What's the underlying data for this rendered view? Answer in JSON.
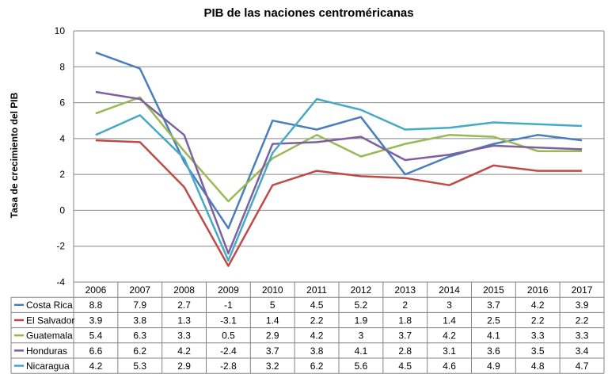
{
  "chart_data": {
    "type": "line",
    "title": "PIB de las naciones centroméricanas",
    "ylabel": "Tasa de crecimiento del PIB",
    "xlabel": "",
    "ylim": [
      -4,
      10
    ],
    "yticks": [
      -4,
      -2,
      0,
      2,
      4,
      6,
      8,
      10
    ],
    "categories": [
      "2006",
      "2007",
      "2008",
      "2009",
      "2010",
      "2011",
      "2012",
      "2013",
      "2014",
      "2015",
      "2016",
      "2017"
    ],
    "grid": "horizontal",
    "legend": "data-table-bottom",
    "series": [
      {
        "name": "Costa Rica",
        "color": "#4a7ebb",
        "values": [
          8.8,
          7.9,
          2.7,
          -1,
          5,
          4.5,
          5.2,
          2,
          3,
          3.7,
          4.2,
          3.9
        ],
        "labels": [
          "8.8",
          "7.9",
          "2.7",
          "-1",
          "5",
          "4.5",
          "5.2",
          "2",
          "3",
          "3.7",
          "4.2",
          "3.9"
        ]
      },
      {
        "name": "El Salvador",
        "color": "#be4b48",
        "values": [
          3.9,
          3.8,
          1.3,
          -3.1,
          1.4,
          2.2,
          1.9,
          1.8,
          1.4,
          2.5,
          2.2,
          2.2
        ],
        "labels": [
          "3.9",
          "3.8",
          "1.3",
          "-3.1",
          "1.4",
          "2.2",
          "1.9",
          "1.8",
          "1.4",
          "2.5",
          "2.2",
          "2.2"
        ]
      },
      {
        "name": "Guatemala",
        "color": "#98b954",
        "values": [
          5.4,
          6.3,
          3.3,
          0.5,
          2.9,
          4.2,
          3,
          3.7,
          4.2,
          4.1,
          3.3,
          3.3
        ],
        "labels": [
          "5.4",
          "6.3",
          "3.3",
          "0.5",
          "2.9",
          "4.2",
          "3",
          "3.7",
          "4.2",
          "4.1",
          "3.3",
          "3.3"
        ]
      },
      {
        "name": "Honduras",
        "color": "#7d60a0",
        "values": [
          6.6,
          6.2,
          4.2,
          -2.4,
          3.7,
          3.8,
          4.1,
          2.8,
          3.1,
          3.6,
          3.5,
          3.4
        ],
        "labels": [
          "6.6",
          "6.2",
          "4.2",
          "-2.4",
          "3.7",
          "3.8",
          "4.1",
          "2.8",
          "3.1",
          "3.6",
          "3.5",
          "3.4"
        ]
      },
      {
        "name": "Nicaragua",
        "color": "#46aac5",
        "values": [
          4.2,
          5.3,
          2.9,
          -2.8,
          3.2,
          6.2,
          5.6,
          4.5,
          4.6,
          4.9,
          4.8,
          4.7
        ],
        "labels": [
          "4.2",
          "5.3",
          "2.9",
          "-2.8",
          "3.2",
          "6.2",
          "5.6",
          "4.5",
          "4.6",
          "4.9",
          "4.8",
          "4.7"
        ]
      }
    ]
  }
}
